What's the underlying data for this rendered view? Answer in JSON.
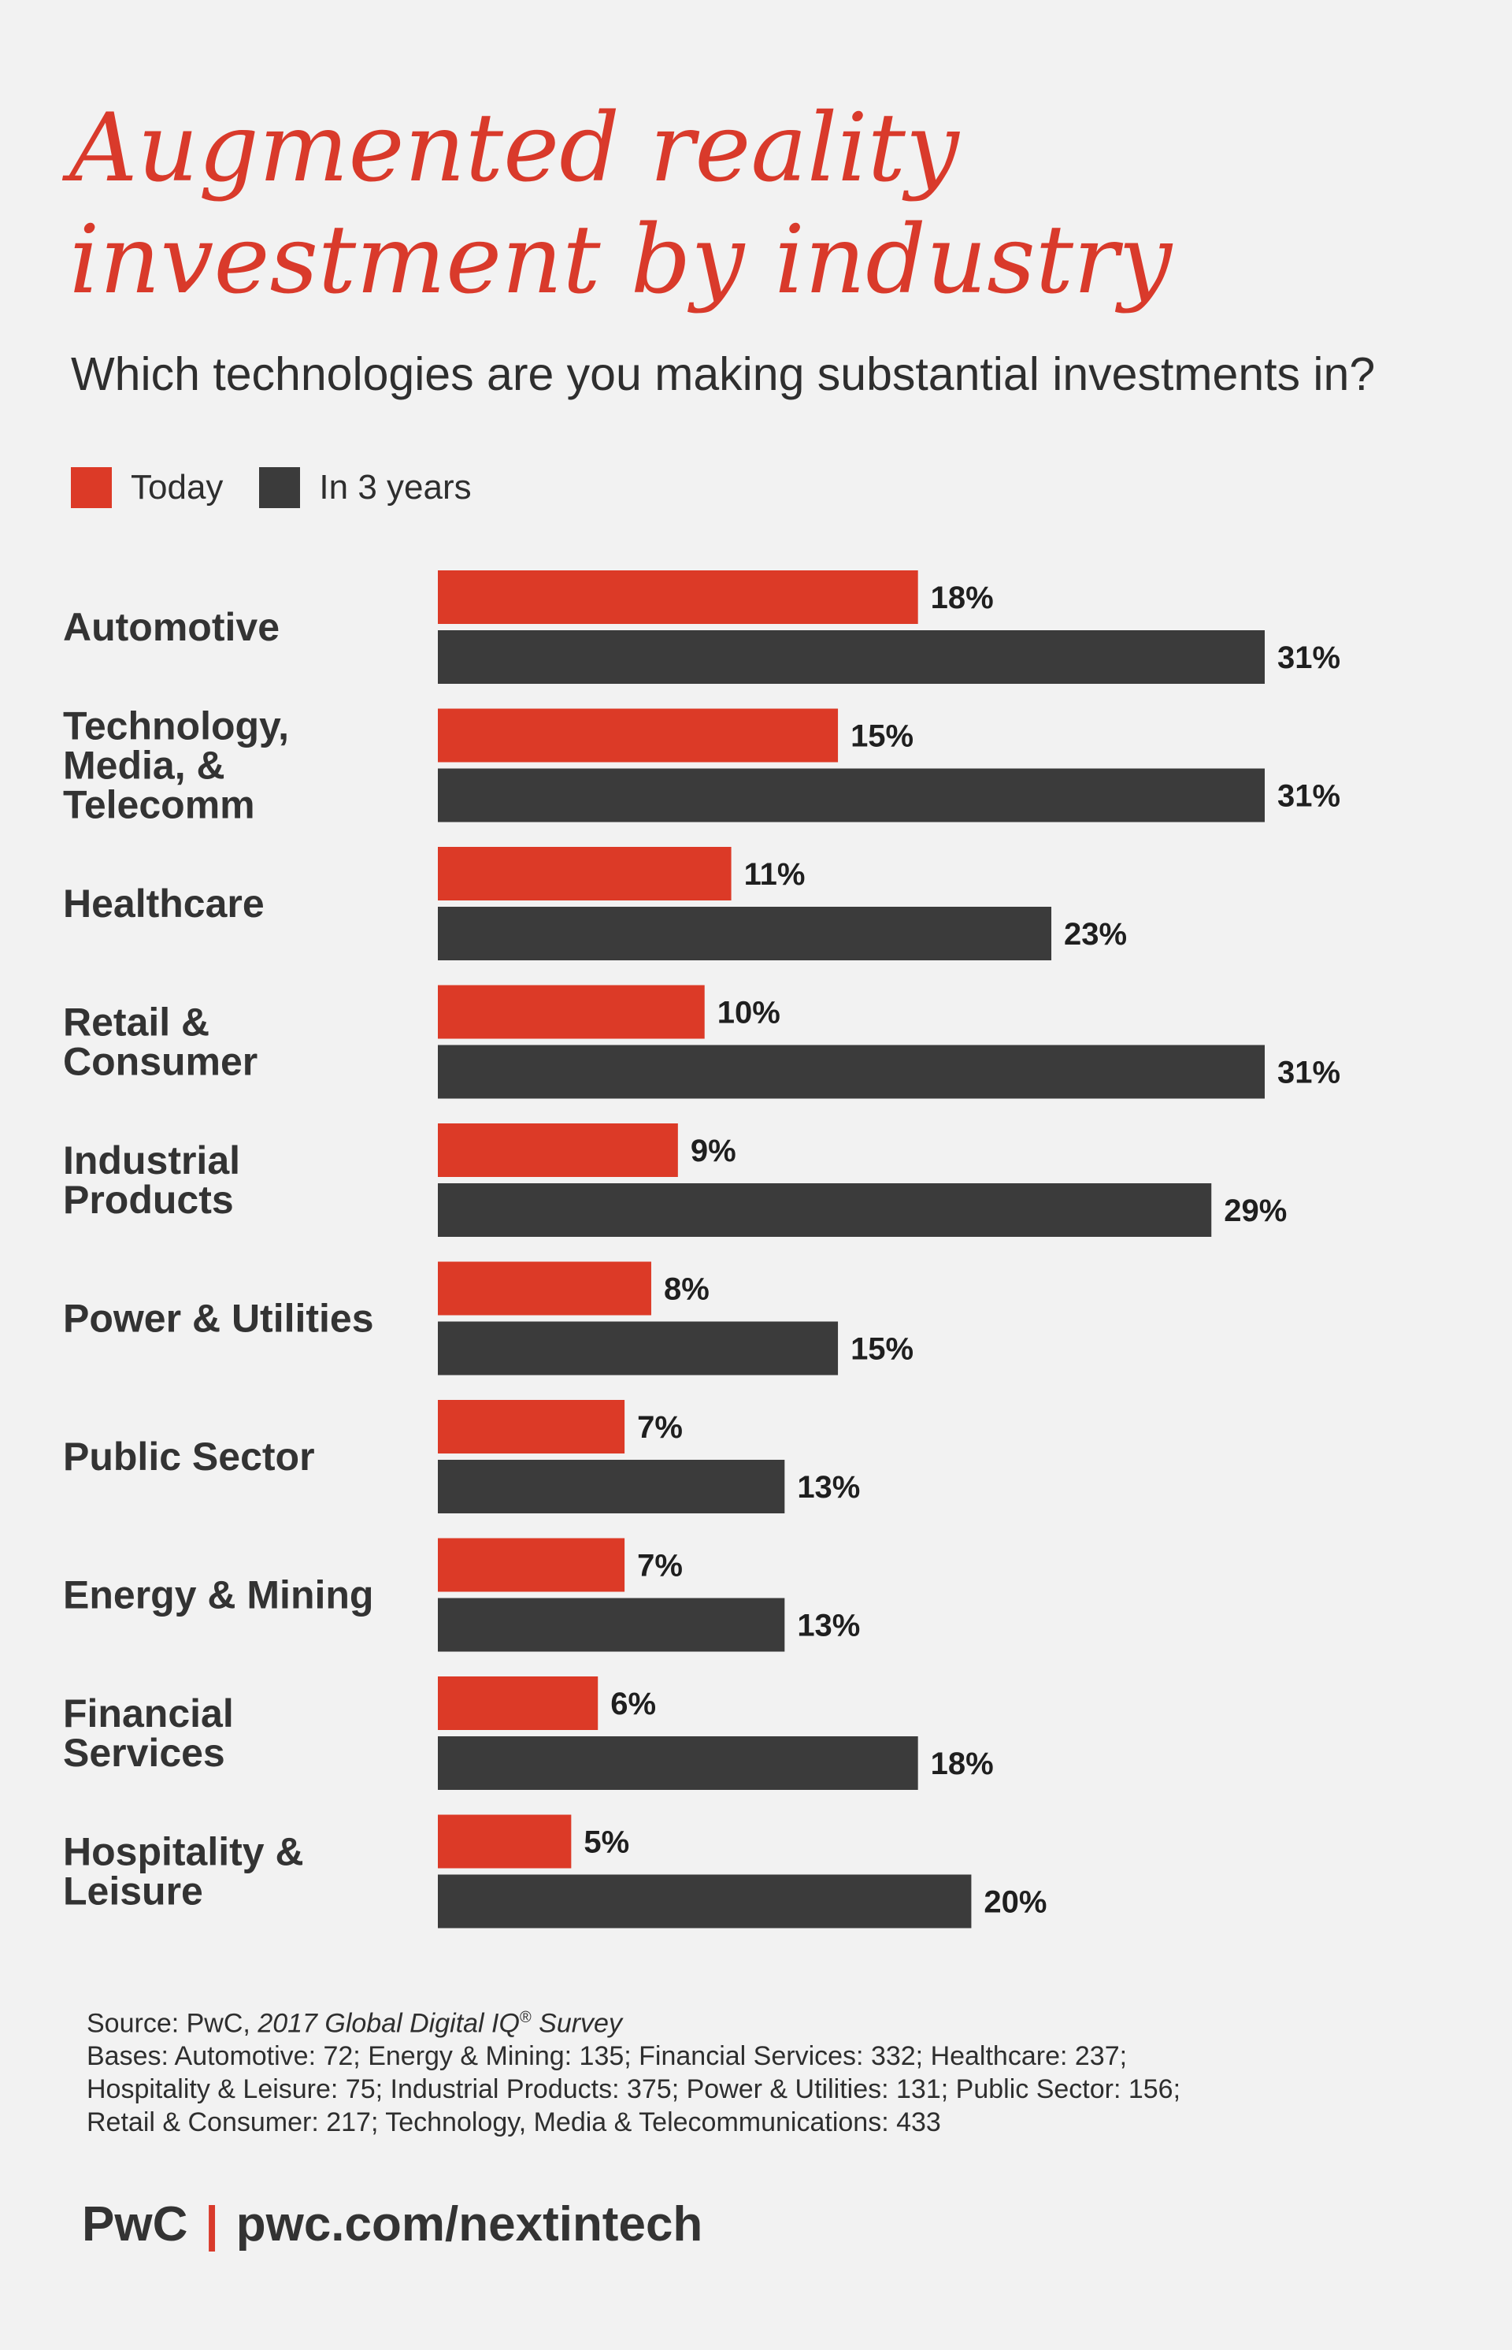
{
  "header": {
    "title_line1": "Augmented reality",
    "title_line2": "investment by industry",
    "subtitle": "Which technologies are you making substantial investments in?"
  },
  "legend": {
    "today_label": "Today",
    "three_years_label": "In 3 years"
  },
  "colors": {
    "today": "#dc3a27",
    "in_3_years": "#3b3b3b",
    "title": "#d93a2b",
    "background": "#f2f2f2"
  },
  "chart_data": {
    "type": "bar",
    "orientation": "horizontal",
    "categories": [
      [
        "Automotive"
      ],
      [
        "Technology,",
        "Media, &",
        "Telecomm"
      ],
      [
        "Healthcare"
      ],
      [
        "Retail &",
        "Consumer"
      ],
      [
        "Industrial",
        "Products"
      ],
      [
        "Power & Utilities"
      ],
      [
        "Public Sector"
      ],
      [
        "Energy & Mining"
      ],
      [
        "Financial",
        "Services"
      ],
      [
        "Hospitality &",
        "Leisure"
      ]
    ],
    "series": [
      {
        "name": "Today",
        "values": [
          18,
          15,
          11,
          10,
          9,
          8,
          7,
          7,
          6,
          5
        ]
      },
      {
        "name": "In 3 years",
        "values": [
          31,
          31,
          23,
          31,
          29,
          15,
          13,
          13,
          18,
          20
        ]
      }
    ],
    "value_suffix": "%",
    "xlim": [
      0,
      31
    ],
    "grid": false,
    "legend_position": "top-left"
  },
  "source": {
    "prefix": "Source: PwC, ",
    "title": "2017 Global Digital IQ",
    "reg": "®",
    "suffix": " Survey",
    "bases_line1": "Bases: Automotive: 72; Energy & Mining: 135; Financial Services: 332; Healthcare: 237;",
    "bases_line2": "Hospitality & Leisure: 75; Industrial Products: 375; Power & Utilities: 131; Public Sector: 156;",
    "bases_line3": "Retail & Consumer: 217; Technology, Media & Telecommunications: 433"
  },
  "footer": {
    "brand": "PwC",
    "separator": "|",
    "url": "pwc.com/nextintech"
  }
}
